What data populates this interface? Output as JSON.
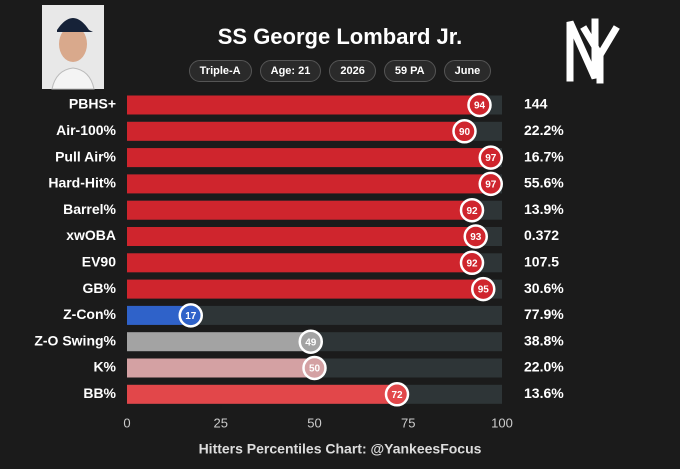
{
  "chart_data": {
    "type": "bar",
    "orientation": "horizontal",
    "title": "SS George Lombard Jr.",
    "tags": [
      "Triple-A",
      "Age: 21",
      "2026",
      "59 PA",
      "June"
    ],
    "categories": [
      "PBHS+",
      "Air-100%",
      "Pull Air%",
      "Hard-Hit%",
      "Barrel%",
      "xwOBA",
      "EV90",
      "GB%",
      "Z-Con%",
      "Z-O Swing%",
      "K%",
      "BB%"
    ],
    "values": [
      94,
      90,
      97,
      97,
      92,
      93,
      92,
      95,
      17,
      49,
      50,
      72
    ],
    "stats": [
      "144",
      "22.2%",
      "16.7%",
      "55.6%",
      "13.9%",
      "0.372",
      "107.5",
      "30.6%",
      "77.9%",
      "38.8%",
      "22.0%",
      "13.6%"
    ],
    "colors": [
      "#cf252d",
      "#cf252d",
      "#cf252d",
      "#cf252d",
      "#cf252d",
      "#cf252d",
      "#cf252d",
      "#cf252d",
      "#2f62c9",
      "#a3a3a3",
      "#d4a1a3",
      "#e2474a"
    ],
    "xlim": [
      0,
      100
    ],
    "xticks": [
      0,
      25,
      50,
      75,
      100
    ],
    "xlabel": "Hitters Percentiles Chart: @YankeesFocus"
  }
}
